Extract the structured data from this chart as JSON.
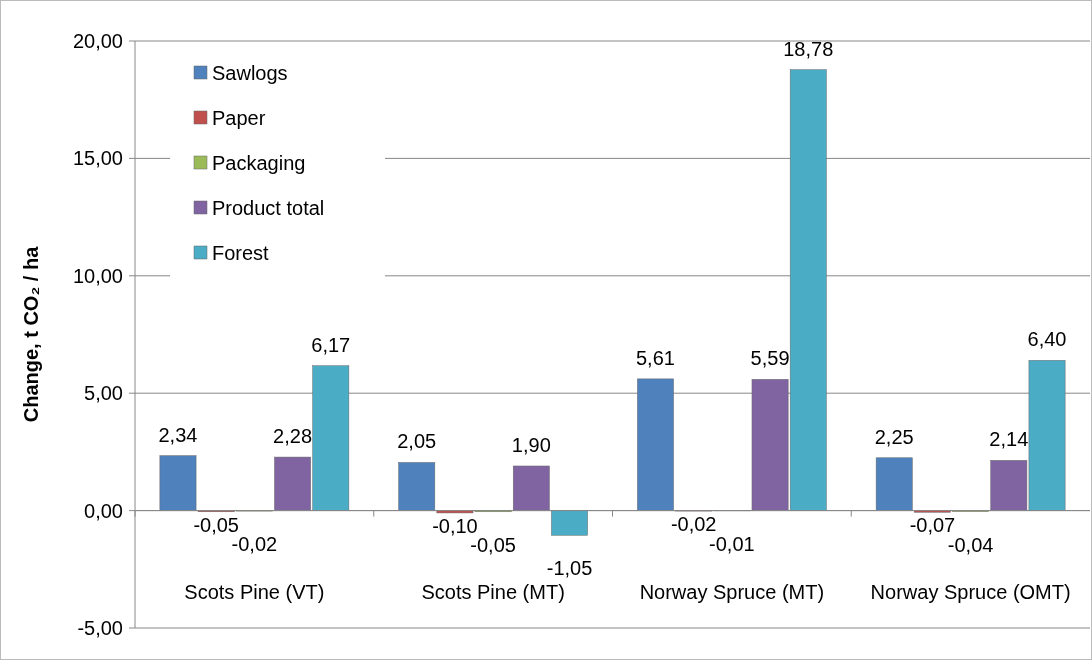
{
  "chart_data": {
    "type": "bar",
    "ylabel": "Change, t CO₂ / ha",
    "categories": [
      "Scots Pine (VT)",
      "Scots Pine (MT)",
      "Norway Spruce (MT)",
      "Norway Spruce (OMT)"
    ],
    "series": [
      {
        "name": "Sawlogs",
        "color": "#4f81bd",
        "values": [
          2.34,
          2.05,
          5.61,
          2.25
        ],
        "value_labels": [
          "2,34",
          "2,05",
          "5,61",
          "2,25"
        ]
      },
      {
        "name": "Paper",
        "color": "#c0504d",
        "values": [
          -0.05,
          -0.1,
          -0.02,
          -0.07
        ],
        "value_labels": [
          "-0,05",
          "-0,10",
          "-0,02",
          "-0,07"
        ]
      },
      {
        "name": "Packaging",
        "color": "#9bbb59",
        "values": [
          -0.02,
          -0.05,
          -0.01,
          -0.04
        ],
        "value_labels": [
          "-0,02",
          "-0,05",
          "-0,01",
          "-0,04"
        ]
      },
      {
        "name": "Product total",
        "color": "#8064a2",
        "values": [
          2.28,
          1.9,
          5.59,
          2.14
        ],
        "value_labels": [
          "2,28",
          "1,90",
          "5,59",
          "2,14"
        ]
      },
      {
        "name": "Forest",
        "color": "#4bacc6",
        "values": [
          6.17,
          -1.05,
          18.78,
          6.4
        ],
        "value_labels": [
          "6,17",
          "-1,05",
          "18,78",
          "6,40"
        ]
      }
    ],
    "ylim": [
      -5,
      20
    ],
    "yticks": [
      {
        "value": -5,
        "label": "-5,00"
      },
      {
        "value": 0,
        "label": "0,00"
      },
      {
        "value": 5,
        "label": "5,00"
      },
      {
        "value": 10,
        "label": "10,00"
      },
      {
        "value": 15,
        "label": "15,00"
      },
      {
        "value": 20,
        "label": "20,00"
      }
    ],
    "grid": "y",
    "legend": "top left"
  }
}
